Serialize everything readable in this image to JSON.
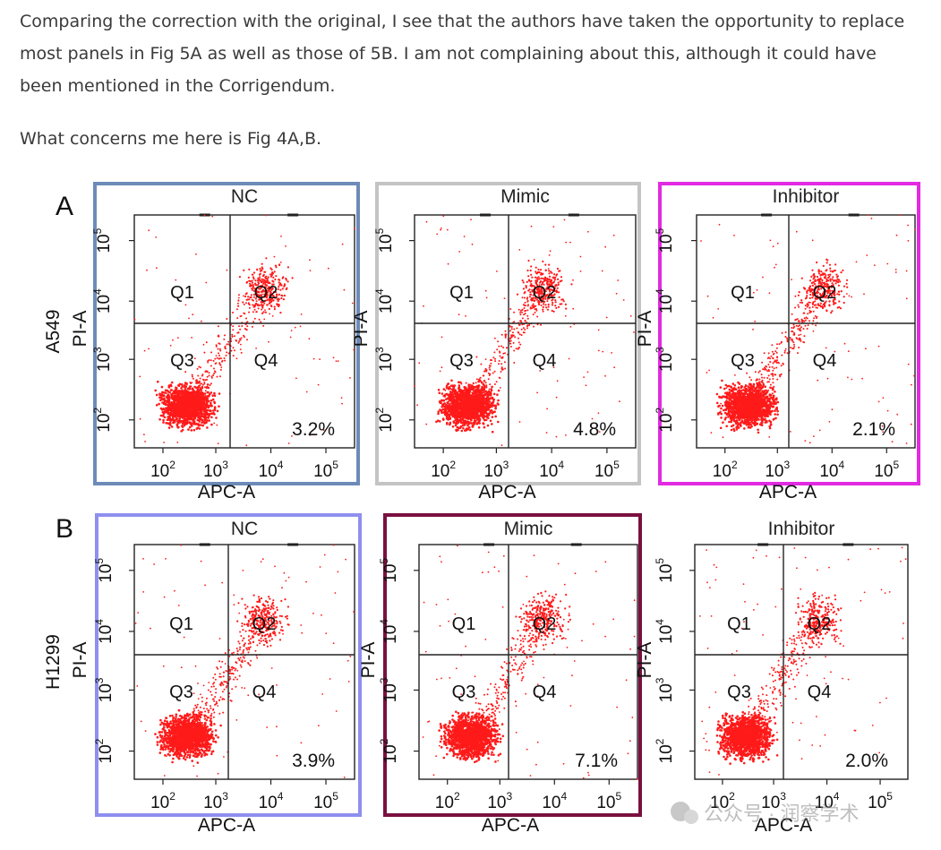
{
  "paragraphs": [
    "Comparing the correction with the original, I see that the authors have taken the opportunity to replace most panels in Fig 5A as well as those of 5B. I am not complaining about this, although it could have been mentioned in the Corrigendum.",
    "What concerns me here is Fig 4A,B."
  ],
  "figure": {
    "rows": [
      {
        "letter": "A",
        "cell_line": "A549",
        "panels": [
          {
            "title": "NC",
            "percent": "3.2%",
            "frame_color": "#6d8bb8"
          },
          {
            "title": "Mimic",
            "percent": "4.8%",
            "frame_color": "#c4c4c4"
          },
          {
            "title": "Inhibitor",
            "percent": "2.1%",
            "frame_color": "#e22ae2"
          }
        ]
      },
      {
        "letter": "B",
        "cell_line": "H1299",
        "panels": [
          {
            "title": "NC",
            "percent": "3.9%",
            "frame_color": "#8f8fef"
          },
          {
            "title": "Mimic",
            "percent": "7.1%",
            "frame_color": "#7a1040"
          },
          {
            "title": "Inhibitor",
            "percent": "2.0%",
            "frame_color": ""
          }
        ]
      }
    ],
    "quadrants": [
      "Q1",
      "Q2",
      "Q3",
      "Q4"
    ],
    "x_axis_label": "APC-A",
    "y_axis_label": "PI-A",
    "tick_bases": [
      "10",
      "10",
      "10",
      "10"
    ],
    "tick_exponents": [
      "2",
      "3",
      "4",
      "5"
    ],
    "dot_color": "#ff1a1a"
  },
  "watermark": "公众号 · 润察学术"
}
